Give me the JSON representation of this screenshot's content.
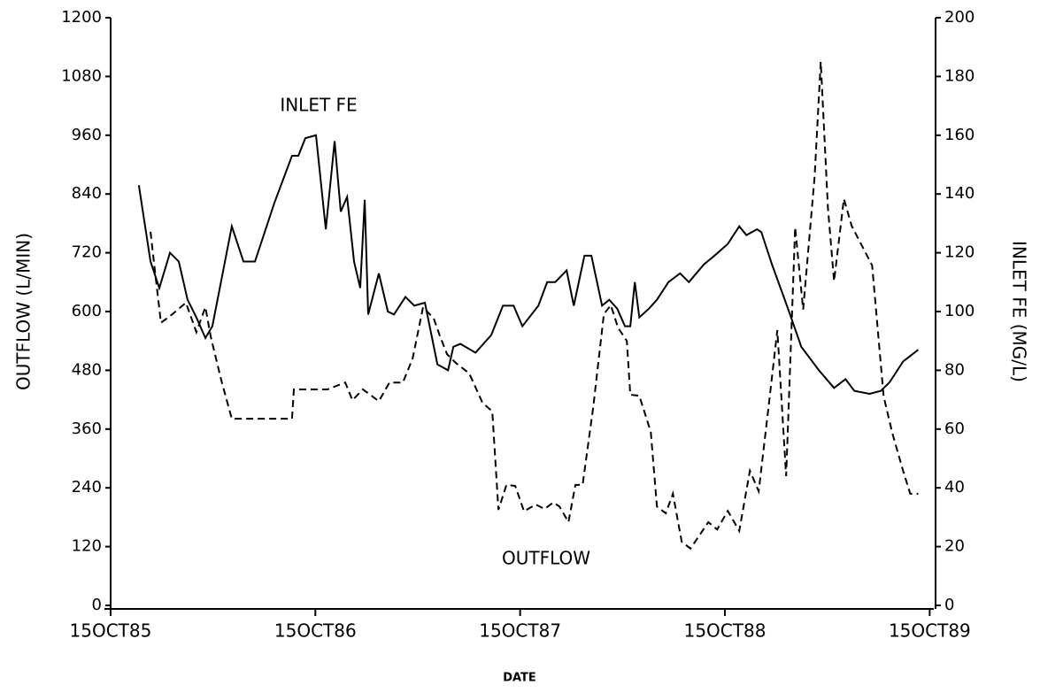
{
  "chart_data": {
    "type": "line",
    "x_label": "DATE",
    "y_label": "OUTFLOW (L/MIN)",
    "y2_label": "INLET FE (MG/L)",
    "xlim": [
      1985.76,
      1989.81
    ],
    "xticks": [
      {
        "value": 1985.79,
        "label": "15OCT85"
      },
      {
        "value": 1986.79,
        "label": "15OCT86"
      },
      {
        "value": 1987.79,
        "label": "15OCT87"
      },
      {
        "value": 1988.79,
        "label": "15OCT88"
      },
      {
        "value": 1989.79,
        "label": "15OCT89"
      }
    ],
    "ylim": [
      0,
      1200
    ],
    "yticks": [
      0,
      120,
      240,
      360,
      480,
      600,
      720,
      840,
      960,
      1080,
      1200
    ],
    "y2lim": [
      0,
      200
    ],
    "y2ticks": [
      0,
      20,
      40,
      60,
      80,
      100,
      120,
      140,
      160,
      180,
      200
    ],
    "series": [
      {
        "name": "INLET FE",
        "color": "#000000",
        "dash": "solid",
        "axis": "y2",
        "x": [
          1985.928,
          1985.985,
          1986.028,
          1986.08,
          1986.123,
          1986.166,
          1986.209,
          1986.253,
          1986.287,
          1986.382,
          1986.439,
          1986.495,
          1986.59,
          1986.676,
          1986.707,
          1986.741,
          1986.793,
          1986.841,
          1986.884,
          1986.914,
          1986.945,
          1986.979,
          1987.009,
          1987.031,
          1987.048,
          1987.1,
          1987.144,
          1987.174,
          1987.23,
          1987.273,
          1987.325,
          1987.386,
          1987.438,
          1987.464,
          1987.498,
          1987.572,
          1987.649,
          1987.706,
          1987.758,
          1987.801,
          1987.879,
          1987.922,
          1987.961,
          1988.017,
          1988.052,
          1988.104,
          1988.138,
          1988.19,
          1988.225,
          1988.264,
          1988.302,
          1988.328,
          1988.35,
          1988.372,
          1988.419,
          1988.458,
          1988.514,
          1988.571,
          1988.614,
          1988.687,
          1988.739,
          1988.804,
          1988.86,
          1988.895,
          1988.947,
          1988.968,
          1989.02,
          1989.098,
          1989.163,
          1989.249,
          1989.323,
          1989.379,
          1989.422,
          1989.496,
          1989.552,
          1989.595,
          1989.66,
          1989.734
        ],
        "values": [
          143,
          117,
          108,
          120,
          117,
          104,
          98,
          91,
          95,
          129,
          117,
          117,
          137,
          153,
          153,
          159,
          160,
          128,
          158,
          134,
          139,
          117,
          108,
          138,
          99,
          113,
          100,
          99,
          105,
          102,
          103,
          82,
          80,
          88,
          89,
          86,
          92,
          102,
          102,
          95,
          102,
          110,
          110,
          114,
          102,
          119,
          119,
          102,
          104,
          101,
          95,
          95,
          110,
          98,
          101,
          104,
          110,
          113,
          110,
          116,
          119,
          123,
          129,
          126,
          128,
          127,
          116,
          101,
          88,
          80,
          74,
          77,
          73,
          72,
          73,
          76,
          83,
          87
        ]
      },
      {
        "name": "OUTFLOW",
        "color": "#000000",
        "dash": "dashed",
        "axis": "y",
        "x": [
          1985.985,
          1986.006,
          1986.036,
          1986.093,
          1986.158,
          1986.209,
          1986.253,
          1986.279,
          1986.331,
          1986.382,
          1986.439,
          1986.676,
          1986.685,
          1986.849,
          1986.936,
          1986.971,
          1987.022,
          1987.1,
          1987.152,
          1987.217,
          1987.265,
          1987.316,
          1987.368,
          1987.399,
          1987.433,
          1987.476,
          1987.541,
          1987.606,
          1987.654,
          1987.684,
          1987.723,
          1987.766,
          1987.809,
          1987.866,
          1987.909,
          1987.952,
          1987.982,
          1988.026,
          1988.06,
          1988.095,
          1988.147,
          1988.199,
          1988.233,
          1988.268,
          1988.311,
          1988.328,
          1988.372,
          1988.428,
          1988.458,
          1988.501,
          1988.536,
          1988.579,
          1988.622,
          1988.709,
          1988.752,
          1988.804,
          1988.86,
          1988.912,
          1988.955,
          1989.003,
          1989.046,
          1989.089,
          1989.133,
          1989.172,
          1989.228,
          1989.258,
          1989.293,
          1989.323,
          1989.371,
          1989.409,
          1989.509,
          1989.565,
          1989.608,
          1989.66,
          1989.695,
          1989.734
        ],
        "values": [
          763,
          685,
          577,
          595,
          618,
          558,
          609,
          549,
          459,
          381,
          381,
          381,
          441,
          441,
          455,
          419,
          441,
          417,
          455,
          455,
          504,
          609,
          586,
          549,
          513,
          495,
          474,
          414,
          396,
          195,
          246,
          244,
          192,
          206,
          197,
          210,
          202,
          170,
          246,
          246,
          405,
          595,
          613,
          567,
          540,
          430,
          428,
          354,
          202,
          188,
          228,
          130,
          116,
          170,
          155,
          193,
          152,
          275,
          233,
          405,
          562,
          264,
          772,
          604,
          875,
          1110,
          812,
          662,
          830,
          775,
          694,
          427,
          351,
          275,
          228,
          228
        ]
      }
    ]
  }
}
